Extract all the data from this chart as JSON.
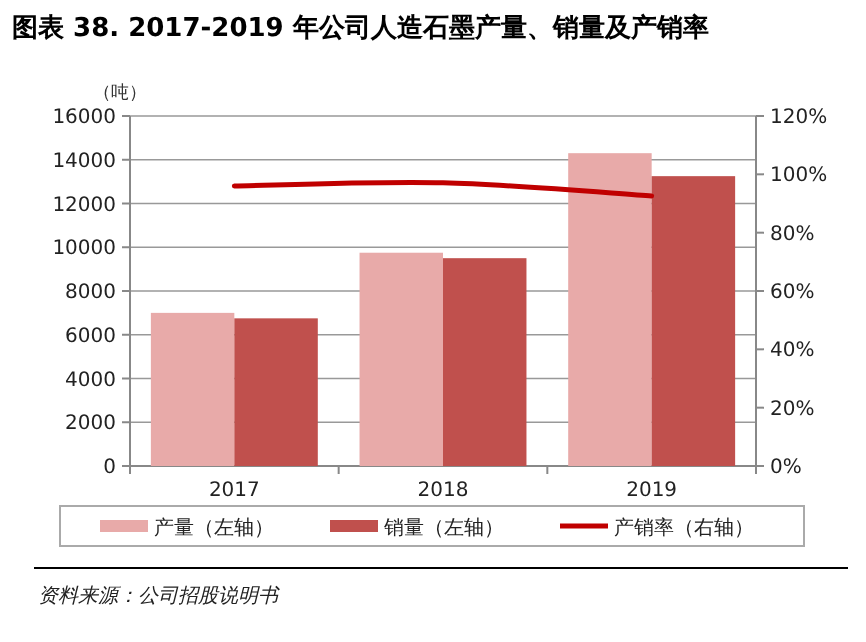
{
  "chart_data": {
    "type": "bar",
    "title": "图表 38. 2017-2019 年公司人造石墨产量、销量及产销率",
    "ylabel": "（吨）",
    "categories": [
      "2017",
      "2018",
      "2019"
    ],
    "series": [
      {
        "name": "产量（左轴）",
        "color": "#e8aaa9",
        "values": [
          7000,
          9750,
          14300
        ]
      },
      {
        "name": "销量（左轴）",
        "color": "#c0504d",
        "values": [
          6750,
          9500,
          13250
        ]
      },
      {
        "name": "产销率（右轴）",
        "type": "line",
        "axis": "y2",
        "color": "#c00000",
        "values": [
          96,
          97.1,
          92.6
        ]
      }
    ],
    "ylim": [
      0,
      16000
    ],
    "yticks": [
      0,
      2000,
      4000,
      6000,
      8000,
      10000,
      12000,
      14000,
      16000
    ],
    "y2lim": [
      0,
      120
    ],
    "y2ticks": [
      {
        "value": 0,
        "label": "0%"
      },
      {
        "value": 20,
        "label": "20%"
      },
      {
        "value": 40,
        "label": "40%"
      },
      {
        "value": 60,
        "label": "60%"
      },
      {
        "value": 80,
        "label": "80%"
      },
      {
        "value": 100,
        "label": "100%"
      },
      {
        "value": 120,
        "label": "120%"
      }
    ],
    "grid": "y",
    "legend": "bottom",
    "annotations": [
      "资料来源：公司招股说明书"
    ]
  }
}
